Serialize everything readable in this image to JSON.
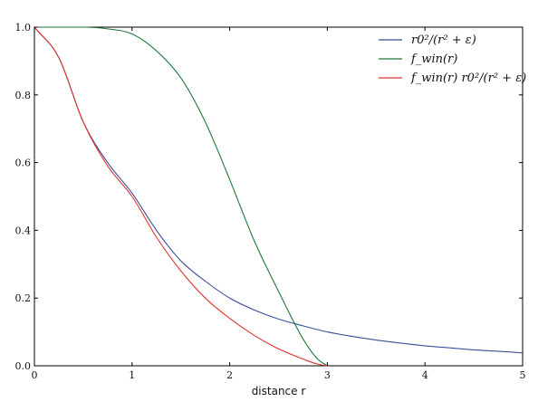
{
  "chart_data": {
    "type": "line",
    "title": "",
    "xlabel": "distance r",
    "ylabel": "",
    "xlim": [
      0,
      5
    ],
    "ylim": [
      0,
      1.0
    ],
    "x_ticks": [
      0,
      1,
      2,
      3,
      4,
      5
    ],
    "x_tick_labels": [
      "0",
      "1",
      "2",
      "3",
      "4",
      "5"
    ],
    "y_ticks": [
      0,
      0.2,
      0.4,
      0.6,
      0.8,
      1.0
    ],
    "y_tick_labels": [
      "0.0",
      "0.2",
      "0.4",
      "0.6",
      "0.8",
      "1.0"
    ],
    "grid": false,
    "legend_position": "top-right",
    "series": [
      {
        "name": "r0²/(r² + ε)",
        "color": "#3a4f9a",
        "x": [
          0,
          0.25,
          0.5,
          0.75,
          1.0,
          1.25,
          1.5,
          1.75,
          2.0,
          2.25,
          2.5,
          2.75,
          3.0,
          3.25,
          3.5,
          3.75,
          4.0,
          4.25,
          4.5,
          4.75,
          5.0
        ],
        "y": [
          1.0,
          0.91,
          0.72,
          0.6,
          0.51,
          0.4,
          0.31,
          0.25,
          0.2,
          0.165,
          0.138,
          0.118,
          0.1,
          0.087,
          0.076,
          0.067,
          0.059,
          0.053,
          0.047,
          0.043,
          0.038
        ]
      },
      {
        "name": "f_win(r)",
        "color": "#1e7a3c",
        "x": [
          0,
          0.25,
          0.5,
          0.75,
          1.0,
          1.25,
          1.5,
          1.75,
          2.0,
          2.25,
          2.5,
          2.75,
          2.9,
          3.0
        ],
        "y": [
          1.0,
          1.0,
          1.0,
          0.995,
          0.98,
          0.93,
          0.85,
          0.72,
          0.55,
          0.37,
          0.22,
          0.08,
          0.02,
          0.0
        ]
      },
      {
        "name": "f_win(r) r0²/(r² + ε)",
        "color": "#e0332e",
        "x": [
          0,
          0.25,
          0.5,
          0.75,
          1.0,
          1.25,
          1.5,
          1.75,
          2.0,
          2.25,
          2.5,
          2.75,
          2.9,
          3.0
        ],
        "y": [
          1.0,
          0.91,
          0.72,
          0.59,
          0.5,
          0.38,
          0.28,
          0.2,
          0.14,
          0.09,
          0.05,
          0.02,
          0.005,
          0.0
        ]
      }
    ]
  }
}
